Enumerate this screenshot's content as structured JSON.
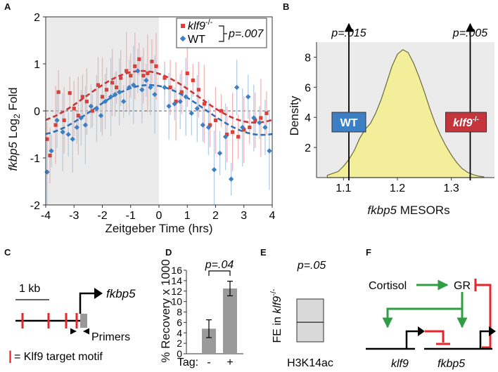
{
  "panels": {
    "A": {
      "label": "A"
    },
    "B": {
      "label": "B"
    },
    "C": {
      "label": "C"
    },
    "D": {
      "label": "D"
    },
    "E": {
      "label": "E"
    },
    "F": {
      "label": "F"
    }
  },
  "colors": {
    "klf9": "#d9403a",
    "wt": "#3c7fc4",
    "density_fill": "#f2ee9a",
    "bar": "#9a9a9a",
    "green": "#2e9d44",
    "red": "#e8252b",
    "shade": "#ebebeb"
  },
  "chart_data": [
    {
      "panel": "A",
      "type": "scatter",
      "xlabel": "Zeitgeber Time (hrs)",
      "ylabel_gene": "fkbp5",
      "ylabel_rest": " Log",
      "ylabel_sub": "2",
      "ylabel_end": " Fold",
      "xlim": [
        -4,
        4
      ],
      "ylim": [
        -2,
        2
      ],
      "xticks": [
        "-4",
        "-3",
        "-2",
        "-1",
        "0",
        "1",
        "2",
        "3",
        "4"
      ],
      "yticks": [
        "2",
        "1",
        "0",
        "-1",
        "-2"
      ],
      "shaded_region_x": [
        -4,
        0
      ],
      "legend": {
        "klf9_name": "klf9",
        "klf9_sup": "-/-",
        "wt_name": "WT",
        "pvalue": "p=.007"
      },
      "series": [
        {
          "name": "klf9-/-",
          "points": [
            [
              -3.95,
              -0.6
            ],
            [
              -3.85,
              -0.95
            ],
            [
              -3.65,
              -0.3
            ],
            [
              -3.55,
              0.4
            ],
            [
              -3.35,
              -0.2
            ],
            [
              -3.15,
              0.38
            ],
            [
              -3.0,
              0.05
            ],
            [
              -2.85,
              -0.1
            ],
            [
              -2.7,
              0.3
            ],
            [
              -2.55,
              0.2
            ],
            [
              -2.35,
              0.0
            ],
            [
              -2.15,
              0.55
            ],
            [
              -2.0,
              0.3
            ],
            [
              -1.85,
              0.45
            ],
            [
              -1.65,
              0.6
            ],
            [
              -1.5,
              0.5
            ],
            [
              -1.35,
              0.7
            ],
            [
              -1.15,
              0.85
            ],
            [
              -1.0,
              0.75
            ],
            [
              -0.85,
              0.95
            ],
            [
              -0.7,
              1.1
            ],
            [
              -0.55,
              0.75
            ],
            [
              -0.4,
              0.8
            ],
            [
              -0.25,
              1.05
            ],
            [
              -0.1,
              0.95
            ],
            [
              0.2,
              0.7
            ],
            [
              0.4,
              0.5
            ],
            [
              0.6,
              0.2
            ],
            [
              0.8,
              0.4
            ],
            [
              1.0,
              0.8
            ],
            [
              1.2,
              0.65
            ],
            [
              1.4,
              0.45
            ],
            [
              1.6,
              0.15
            ],
            [
              1.8,
              -0.3
            ],
            [
              2.0,
              -0.2
            ],
            [
              2.2,
              0.0
            ],
            [
              2.4,
              -0.5
            ],
            [
              2.6,
              -0.45
            ],
            [
              2.8,
              -0.55
            ],
            [
              3.0,
              -0.4
            ],
            [
              3.2,
              -0.35
            ],
            [
              3.4,
              -0.2
            ],
            [
              3.6,
              -0.15
            ],
            [
              3.8,
              -0.05
            ]
          ],
          "fit": {
            "mean": 0.3,
            "amplitude": 0.55,
            "period": 8,
            "peak": -0.6
          }
        },
        {
          "name": "WT",
          "points": [
            [
              -3.95,
              -1.3
            ],
            [
              -3.8,
              -0.85
            ],
            [
              -3.6,
              -0.2
            ],
            [
              -3.4,
              -0.45
            ],
            [
              -3.2,
              -0.5
            ],
            [
              -3.05,
              -0.6
            ],
            [
              -2.9,
              -0.35
            ],
            [
              -2.75,
              -0.15
            ],
            [
              -2.6,
              -0.3
            ],
            [
              -2.4,
              0.1
            ],
            [
              -2.2,
              0.05
            ],
            [
              -2.05,
              -0.1
            ],
            [
              -1.9,
              0.2
            ],
            [
              -1.7,
              0.3
            ],
            [
              -1.55,
              0.35
            ],
            [
              -1.4,
              0.4
            ],
            [
              -1.25,
              0.2
            ],
            [
              -1.05,
              0.5
            ],
            [
              -0.9,
              0.55
            ],
            [
              -0.75,
              0.85
            ],
            [
              -0.6,
              0.45
            ],
            [
              -0.45,
              0.65
            ],
            [
              -0.3,
              0.5
            ],
            [
              -0.15,
              0.35
            ],
            [
              0.2,
              0.5
            ],
            [
              0.35,
              0.1
            ],
            [
              0.55,
              0.15
            ],
            [
              0.75,
              0.2
            ],
            [
              0.95,
              0.3
            ],
            [
              1.15,
              -0.05
            ],
            [
              1.35,
              0.05
            ],
            [
              1.55,
              -0.3
            ],
            [
              1.75,
              -0.35
            ],
            [
              1.95,
              -1.25
            ],
            [
              2.15,
              -0.9
            ],
            [
              2.35,
              -0.55
            ],
            [
              2.55,
              -1.45
            ],
            [
              2.75,
              0.5
            ],
            [
              2.95,
              -0.35
            ],
            [
              3.15,
              0.3
            ],
            [
              3.35,
              -0.15
            ],
            [
              3.55,
              -0.25
            ],
            [
              3.75,
              -0.35
            ],
            [
              3.9,
              -0.85
            ]
          ],
          "fit": {
            "mean": 0.02,
            "amplitude": 0.53,
            "period": 8,
            "peak": -0.35
          }
        }
      ]
    },
    {
      "panel": "B",
      "type": "area",
      "xlabel_gene": "fkbp5",
      "xlabel_rest": " MESORs",
      "ylabel": "Density",
      "xlim": [
        1.05,
        1.38
      ],
      "ylim": [
        0,
        9
      ],
      "xticks": [
        "1.1",
        "1.2",
        "1.3"
      ],
      "yticks": [
        "8",
        "6",
        "4",
        "2"
      ],
      "density": {
        "x": [
          1.07,
          1.09,
          1.1,
          1.11,
          1.12,
          1.13,
          1.14,
          1.15,
          1.16,
          1.17,
          1.18,
          1.19,
          1.2,
          1.21,
          1.22,
          1.23,
          1.24,
          1.25,
          1.26,
          1.27,
          1.28,
          1.29,
          1.3,
          1.31,
          1.32,
          1.33,
          1.34,
          1.35,
          1.36
        ],
        "y": [
          0.15,
          0.4,
          0.75,
          1.2,
          1.8,
          2.6,
          3.2,
          3.6,
          4.3,
          5.2,
          6.3,
          7.4,
          8.2,
          8.5,
          8.3,
          7.6,
          6.7,
          5.7,
          4.6,
          3.6,
          2.8,
          2.1,
          1.5,
          1.0,
          0.6,
          0.35,
          0.2,
          0.1,
          0.05
        ]
      },
      "markers": [
        {
          "x": 1.11,
          "pvalue": "p=.015",
          "box_label": "WT",
          "box_color": "#3c7fc4"
        },
        {
          "x": 1.335,
          "pvalue": "p=.005",
          "box_label": "klf9",
          "box_sup": "-/-",
          "box_color": "#c4353b"
        }
      ]
    },
    {
      "panel": "D",
      "type": "bar",
      "ylabel": "% Recovery x 1000",
      "ylim": [
        0,
        16
      ],
      "yticks": [
        "16",
        "14",
        "12",
        "10",
        "8",
        "6",
        "4",
        "2",
        "0"
      ],
      "tag_label": "Tag:",
      "categories": [
        "-",
        "+"
      ],
      "values": [
        4.8,
        12.5
      ],
      "errors": [
        1.7,
        1.4
      ],
      "pvalue": "p=.04"
    },
    {
      "panel": "E",
      "type": "bar",
      "ylabel_prefix": "FE in ",
      "ylabel_gene": "klf9",
      "ylabel_sup": "-/-",
      "categories": [
        "H3K14ac"
      ],
      "box": {
        "low": 1.9,
        "median": 2.95,
        "high": 4.2
      },
      "pvalue": "p=.05"
    }
  ],
  "panel_c": {
    "scale_label": "1 kb",
    "gene": "fkbp5",
    "primers_label": "Primers",
    "legend_bar": "|",
    "legend_text": "= Klf9 target motif"
  },
  "panel_f": {
    "cortisol": "Cortisol",
    "gr": "GR",
    "gene1": "klf9",
    "gene2": "fkbp5"
  }
}
